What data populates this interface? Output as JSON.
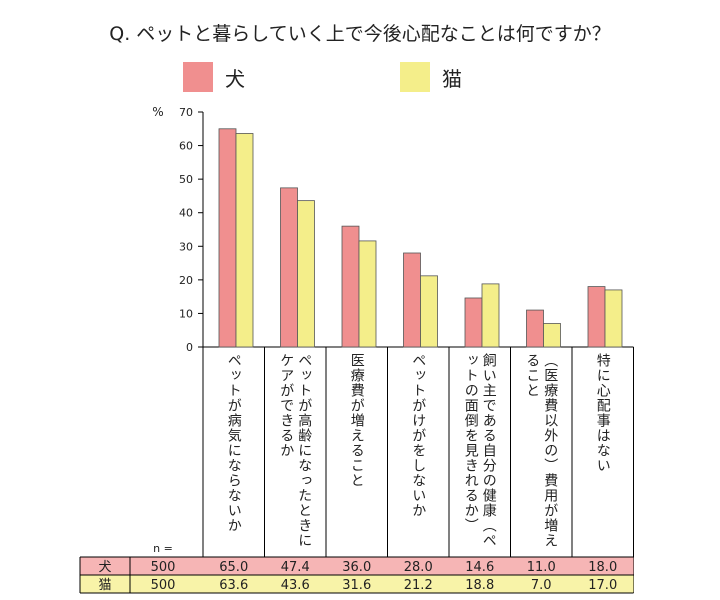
{
  "chart_data": {
    "type": "bar",
    "title": "Q. ペットと暮らしていく上で今後心配なことは何ですか？",
    "ylabel": "%",
    "ylim": [
      0,
      70
    ],
    "yticks": [
      0,
      10,
      20,
      30,
      40,
      50,
      60,
      70
    ],
    "legend_position": "top",
    "categories": [
      "ペットが病気にならないか",
      "ペットが高齢になったときにケアができるか",
      "医療費が増えること",
      "ペットがけがをしないか",
      "飼い主である自分の健康（ペットの面倒を見きれるか）",
      "（医療費以外の）費用が増えること",
      "特に心配事はない"
    ],
    "series": [
      {
        "name": "犬",
        "color": "#f08f8f",
        "n": "500",
        "values": [
          65.0,
          47.4,
          36.0,
          28.0,
          14.6,
          11.0,
          18.0
        ],
        "labels": [
          "65.0",
          "47.4",
          "36.0",
          "28.0",
          "14.6",
          "11.0",
          "18.0"
        ]
      },
      {
        "name": "猫",
        "color": "#f4ee8a",
        "n": "500",
        "values": [
          63.6,
          43.6,
          31.6,
          21.2,
          18.8,
          7.0,
          17.0
        ],
        "labels": [
          "63.6",
          "43.6",
          "31.6",
          "21.2",
          "18.8",
          "7.0",
          "17.0"
        ]
      }
    ],
    "table": {
      "n_header": "n =",
      "row_colors": [
        "#f6b5b5",
        "#f8f3a8"
      ]
    }
  }
}
